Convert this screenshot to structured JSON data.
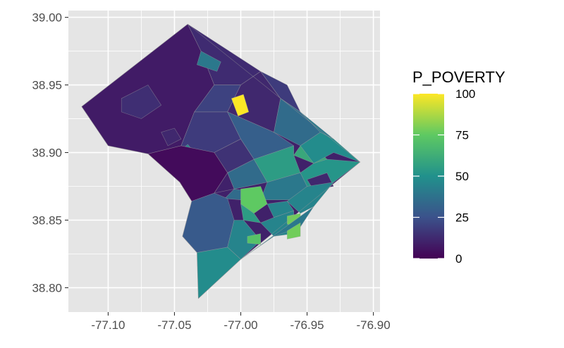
{
  "chart_data": {
    "type": "choropleth",
    "fill_variable": "P_POVERTY",
    "x_axis": {
      "ticks": [
        -77.1,
        -77.05,
        -77.0,
        -76.95,
        -76.9
      ],
      "tick_labels": [
        "-77.10",
        "-77.05",
        "-77.00",
        "-76.95",
        "-76.90"
      ],
      "range": [
        -77.13,
        -76.895
      ]
    },
    "y_axis": {
      "ticks": [
        38.8,
        38.85,
        38.9,
        38.95,
        39.0
      ],
      "tick_labels": [
        "38.80",
        "38.85",
        "38.90",
        "38.95",
        "39.00"
      ],
      "range": [
        38.782,
        39.005
      ]
    },
    "grid": true,
    "background_color": "#e5e5e5",
    "grid_color": "#ffffff",
    "legend": {
      "title": "P_POVERTY",
      "position": "right",
      "breaks": [
        0,
        25,
        50,
        75,
        100
      ],
      "break_labels": [
        "0",
        "25",
        "50",
        "75",
        "100"
      ],
      "colors": [
        "#440154",
        "#3b528b",
        "#21918c",
        "#5ec962",
        "#fde725"
      ]
    },
    "boundary_outline": [
      [
        -77.04,
        38.995
      ],
      [
        -76.91,
        38.893
      ],
      [
        -77.0,
        38.821
      ],
      [
        -77.032,
        38.792
      ],
      [
        -77.033,
        38.826
      ],
      [
        -77.044,
        38.838
      ],
      [
        -77.037,
        38.864
      ],
      [
        -77.046,
        38.878
      ],
      [
        -77.07,
        38.899
      ],
      [
        -77.1,
        38.905
      ],
      [
        -77.12,
        38.934
      ]
    ],
    "regions": [
      {
        "polygon": [
          [
            -77.04,
            38.995
          ],
          [
            -77.12,
            38.934
          ],
          [
            -77.1,
            38.905
          ],
          [
            -77.07,
            38.899
          ],
          [
            -77.045,
            38.905
          ],
          [
            -77.035,
            38.93
          ],
          [
            -77.02,
            38.95
          ],
          [
            -77.03,
            38.975
          ]
        ],
        "value": 8
      },
      {
        "polygon": [
          [
            -77.09,
            38.94
          ],
          [
            -77.07,
            38.95
          ],
          [
            -77.06,
            38.935
          ],
          [
            -77.075,
            38.925
          ],
          [
            -77.09,
            38.93
          ]
        ],
        "value": 14
      },
      {
        "polygon": [
          [
            -77.06,
            38.915
          ],
          [
            -77.05,
            38.918
          ],
          [
            -77.045,
            38.91
          ],
          [
            -77.055,
            38.905
          ]
        ],
        "value": 12
      },
      {
        "polygon": [
          [
            -77.04,
            38.995
          ],
          [
            -77.03,
            38.975
          ],
          [
            -77.02,
            38.95
          ],
          [
            -77.0,
            38.95
          ],
          [
            -76.985,
            38.96
          ]
        ],
        "value": 13
      },
      {
        "polygon": [
          [
            -77.03,
            38.975
          ],
          [
            -77.015,
            38.967
          ],
          [
            -77.018,
            38.96
          ],
          [
            -77.033,
            38.965
          ]
        ],
        "value": 40
      },
      {
        "polygon": [
          [
            -77.02,
            38.95
          ],
          [
            -77.035,
            38.93
          ],
          [
            -77.01,
            38.93
          ],
          [
            -77.0,
            38.95
          ]
        ],
        "value": 20
      },
      {
        "polygon": [
          [
            -77.0,
            38.95
          ],
          [
            -77.01,
            38.93
          ],
          [
            -76.975,
            38.915
          ],
          [
            -76.97,
            38.94
          ],
          [
            -76.985,
            38.96
          ]
        ],
        "value": 12
      },
      {
        "polygon": [
          [
            -77.007,
            38.94
          ],
          [
            -76.998,
            38.943
          ],
          [
            -76.994,
            38.93
          ],
          [
            -77.002,
            38.927
          ]
        ],
        "value": 100
      },
      {
        "polygon": [
          [
            -76.985,
            38.96
          ],
          [
            -76.97,
            38.94
          ],
          [
            -76.955,
            38.93
          ],
          [
            -76.965,
            38.95
          ]
        ],
        "value": 18
      },
      {
        "polygon": [
          [
            -77.035,
            38.93
          ],
          [
            -77.045,
            38.905
          ],
          [
            -77.02,
            38.9
          ],
          [
            -77.0,
            38.91
          ],
          [
            -77.01,
            38.93
          ]
        ],
        "value": 18
      },
      {
        "polygon": [
          [
            -77.05,
            38.898
          ],
          [
            -77.045,
            38.89
          ],
          [
            -77.035,
            38.9
          ],
          [
            -77.04,
            38.906
          ]
        ],
        "value": 45
      },
      {
        "polygon": [
          [
            -77.0,
            38.91
          ],
          [
            -77.02,
            38.9
          ],
          [
            -77.01,
            38.885
          ],
          [
            -76.99,
            38.895
          ]
        ],
        "value": 15
      },
      {
        "polygon": [
          [
            -77.01,
            38.93
          ],
          [
            -77.0,
            38.91
          ],
          [
            -76.99,
            38.895
          ],
          [
            -76.96,
            38.905
          ],
          [
            -76.975,
            38.915
          ]
        ],
        "value": 30
      },
      {
        "polygon": [
          [
            -76.97,
            38.94
          ],
          [
            -76.975,
            38.915
          ],
          [
            -76.955,
            38.905
          ],
          [
            -76.94,
            38.915
          ],
          [
            -76.955,
            38.93
          ]
        ],
        "value": 35
      },
      {
        "polygon": [
          [
            -76.955,
            38.93
          ],
          [
            -76.94,
            38.915
          ],
          [
            -76.93,
            38.91
          ],
          [
            -76.945,
            38.922
          ]
        ],
        "value": 40
      },
      {
        "polygon": [
          [
            -76.955,
            38.905
          ],
          [
            -76.94,
            38.9
          ],
          [
            -76.935,
            38.895
          ],
          [
            -76.945,
            38.892
          ],
          [
            -76.96,
            38.898
          ]
        ],
        "value": 60
      },
      {
        "polygon": [
          [
            -76.94,
            38.915
          ],
          [
            -76.955,
            38.905
          ],
          [
            -76.945,
            38.892
          ],
          [
            -76.93,
            38.9
          ],
          [
            -76.91,
            38.893
          ],
          [
            -76.93,
            38.91
          ]
        ],
        "value": 48
      },
      {
        "polygon": [
          [
            -76.99,
            38.895
          ],
          [
            -77.01,
            38.885
          ],
          [
            -77.005,
            38.873
          ],
          [
            -76.98,
            38.878
          ]
        ],
        "value": 35
      },
      {
        "polygon": [
          [
            -76.96,
            38.905
          ],
          [
            -76.99,
            38.895
          ],
          [
            -76.98,
            38.878
          ],
          [
            -76.955,
            38.885
          ],
          [
            -76.96,
            38.898
          ]
        ],
        "value": 55
      },
      {
        "polygon": [
          [
            -76.955,
            38.885
          ],
          [
            -76.98,
            38.878
          ],
          [
            -76.985,
            38.865
          ],
          [
            -76.96,
            38.865
          ],
          [
            -76.95,
            38.875
          ]
        ],
        "value": 40
      },
      {
        "polygon": [
          [
            -76.945,
            38.892
          ],
          [
            -76.935,
            38.895
          ],
          [
            -76.91,
            38.893
          ],
          [
            -76.93,
            38.878
          ],
          [
            -76.95,
            38.875
          ],
          [
            -76.955,
            38.885
          ]
        ],
        "value": 52
      },
      {
        "polygon": [
          [
            -76.95,
            38.88
          ],
          [
            -76.935,
            38.885
          ],
          [
            -76.93,
            38.875
          ],
          [
            -76.945,
            38.872
          ]
        ],
        "value": 12
      },
      {
        "polygon": [
          [
            -77.07,
            38.899
          ],
          [
            -77.046,
            38.878
          ],
          [
            -77.037,
            38.864
          ],
          [
            -77.02,
            38.87
          ],
          [
            -77.01,
            38.885
          ],
          [
            -77.02,
            38.9
          ],
          [
            -77.045,
            38.905
          ]
        ],
        "value": 3
      },
      {
        "polygon": [
          [
            -77.01,
            38.885
          ],
          [
            -77.02,
            38.87
          ],
          [
            -77.005,
            38.873
          ]
        ],
        "value": 10
      },
      {
        "polygon": [
          [
            -77.005,
            38.873
          ],
          [
            -76.998,
            38.872
          ],
          [
            -77.0,
            38.865
          ],
          [
            -77.012,
            38.866
          ]
        ],
        "value": 35
      },
      {
        "polygon": [
          [
            -77.0,
            38.873
          ],
          [
            -76.985,
            38.875
          ],
          [
            -76.98,
            38.862
          ],
          [
            -76.99,
            38.855
          ],
          [
            -77.0,
            38.862
          ]
        ],
        "value": 75
      },
      {
        "polygon": [
          [
            -76.98,
            38.862
          ],
          [
            -76.965,
            38.864
          ],
          [
            -76.96,
            38.857
          ],
          [
            -76.975,
            38.852
          ]
        ],
        "value": 45
      },
      {
        "polygon": [
          [
            -77.0,
            38.862
          ],
          [
            -76.99,
            38.855
          ],
          [
            -76.985,
            38.848
          ],
          [
            -76.998,
            38.85
          ]
        ],
        "value": 55
      },
      {
        "polygon": [
          [
            -76.985,
            38.848
          ],
          [
            -76.975,
            38.852
          ],
          [
            -76.96,
            38.857
          ],
          [
            -76.96,
            38.84
          ],
          [
            -76.975,
            38.838
          ]
        ],
        "value": 45
      },
      {
        "polygon": [
          [
            -76.965,
            38.853
          ],
          [
            -76.955,
            38.855
          ],
          [
            -76.955,
            38.845
          ],
          [
            -76.965,
            38.847
          ]
        ],
        "value": 78
      },
      {
        "polygon": [
          [
            -76.965,
            38.864
          ],
          [
            -76.95,
            38.875
          ],
          [
            -76.93,
            38.878
          ],
          [
            -76.945,
            38.86
          ],
          [
            -76.955,
            38.855
          ]
        ],
        "value": 45
      },
      {
        "polygon": [
          [
            -76.955,
            38.845
          ],
          [
            -76.945,
            38.86
          ],
          [
            -77.0,
            38.821
          ],
          [
            -76.975,
            38.838
          ]
        ],
        "value": 40
      },
      {
        "polygon": [
          [
            -76.965,
            38.842
          ],
          [
            -76.955,
            38.848
          ],
          [
            -76.955,
            38.838
          ],
          [
            -76.965,
            38.836
          ]
        ],
        "value": 78
      },
      {
        "polygon": [
          [
            -77.037,
            38.864
          ],
          [
            -77.044,
            38.838
          ],
          [
            -77.033,
            38.826
          ],
          [
            -77.01,
            38.83
          ],
          [
            -77.005,
            38.85
          ],
          [
            -77.01,
            38.866
          ],
          [
            -77.02,
            38.87
          ]
        ],
        "value": 28
      },
      {
        "polygon": [
          [
            -77.005,
            38.85
          ],
          [
            -77.01,
            38.83
          ],
          [
            -77.0,
            38.821
          ],
          [
            -76.985,
            38.835
          ],
          [
            -76.998,
            38.85
          ]
        ],
        "value": 45
      },
      {
        "polygon": [
          [
            -76.995,
            38.838
          ],
          [
            -76.985,
            38.84
          ],
          [
            -76.985,
            38.832
          ],
          [
            -76.995,
            38.833
          ]
        ],
        "value": 72
      },
      {
        "polygon": [
          [
            -77.033,
            38.826
          ],
          [
            -77.032,
            38.792
          ],
          [
            -77.0,
            38.821
          ],
          [
            -77.01,
            38.83
          ]
        ],
        "value": 48
      }
    ]
  }
}
